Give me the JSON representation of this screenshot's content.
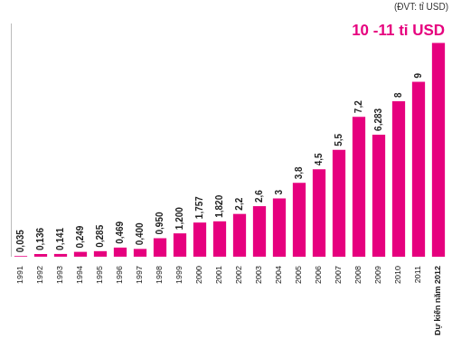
{
  "chart_data": {
    "type": "bar",
    "subtitle": "(ĐVT: tỉ USD)",
    "categories": [
      "1991",
      "1992",
      "1993",
      "1994",
      "1995",
      "1996",
      "1997",
      "1998",
      "1999",
      "2000",
      "2001",
      "2002",
      "2003",
      "2004",
      "2005",
      "2006",
      "2007",
      "2008",
      "2009",
      "2010",
      "2011",
      "Dự kiến năm 2012"
    ],
    "values": [
      0.035,
      0.136,
      0.141,
      0.249,
      0.285,
      0.469,
      0.4,
      0.95,
      1.2,
      1.757,
      1.82,
      2.2,
      2.6,
      3,
      3.8,
      4.5,
      5.5,
      7.2,
      6.283,
      8,
      9,
      11
    ],
    "value_labels": [
      "0,035",
      "0,136",
      "0,141",
      "0,249",
      "0,285",
      "0,469",
      "0,400",
      "0,950",
      "1,200",
      "1,757",
      "1,820",
      "2,2",
      "2,6",
      "3",
      "3,8",
      "4,5",
      "5,5",
      "7,2",
      "6,283",
      "8",
      "9",
      "10 -11 tỉ USD"
    ],
    "color": "#e6007e",
    "ylim": [
      0,
      12
    ],
    "grid": false,
    "data_labels": true,
    "tick_labels": "x"
  }
}
